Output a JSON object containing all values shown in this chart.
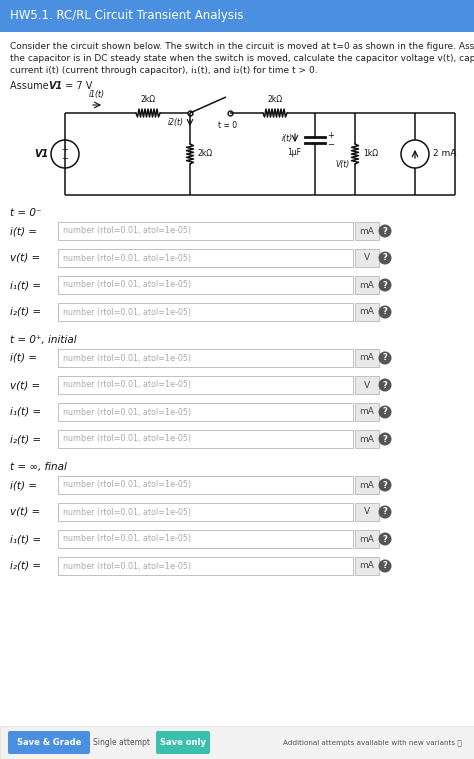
{
  "title": "HW5.1. RC/RL Circuit Transient Analysis",
  "title_bg": "#4A8FE0",
  "title_color": "#ffffff",
  "body_bg": "#ffffff",
  "description": [
    "Consider the circuit shown below. The switch in the circuit is moved at t=0 as shown in the figure. Assuming",
    "the capacitor is in DC steady state when the switch is moved, calculate the capacitor voltage v(t), capacitor",
    "current i(t) (current through capacitor), i₁(t), and i₂(t) for time t > 0."
  ],
  "assume_text": "Assume V1 = 7 V",
  "sections": [
    {
      "header": "t = 0⁻",
      "rows": [
        {
          "label": "i(t) =",
          "unit": "mA"
        },
        {
          "label": "v(t) =",
          "unit": "V"
        },
        {
          "label": "i₁(t) =",
          "unit": "mA"
        },
        {
          "label": "i₂(t) =",
          "unit": "mA"
        }
      ]
    },
    {
      "header": "t = 0⁺, initial",
      "rows": [
        {
          "label": "i(t) =",
          "unit": "mA"
        },
        {
          "label": "v(t) =",
          "unit": "V"
        },
        {
          "label": "i₁(t) =",
          "unit": "mA"
        },
        {
          "label": "i₂(t) =",
          "unit": "mA"
        }
      ]
    },
    {
      "header": "t = ∞, final",
      "rows": [
        {
          "label": "i(t) =",
          "unit": "mA"
        },
        {
          "label": "v(t) =",
          "unit": "V"
        },
        {
          "label": "i₁(t) =",
          "unit": "mA"
        },
        {
          "label": "i₂(t) =",
          "unit": "mA"
        }
      ]
    }
  ],
  "input_placeholder": "number (rtol=0.01, atol=1e-05)",
  "save_grade_color": "#4A8FE0",
  "save_only_color": "#3BBFAD",
  "save_grade_text": "Save & Grade",
  "save_grade_sub": "Single attempt",
  "save_only_text": "Save only",
  "footer_note": "Additional attempts available with new variants"
}
